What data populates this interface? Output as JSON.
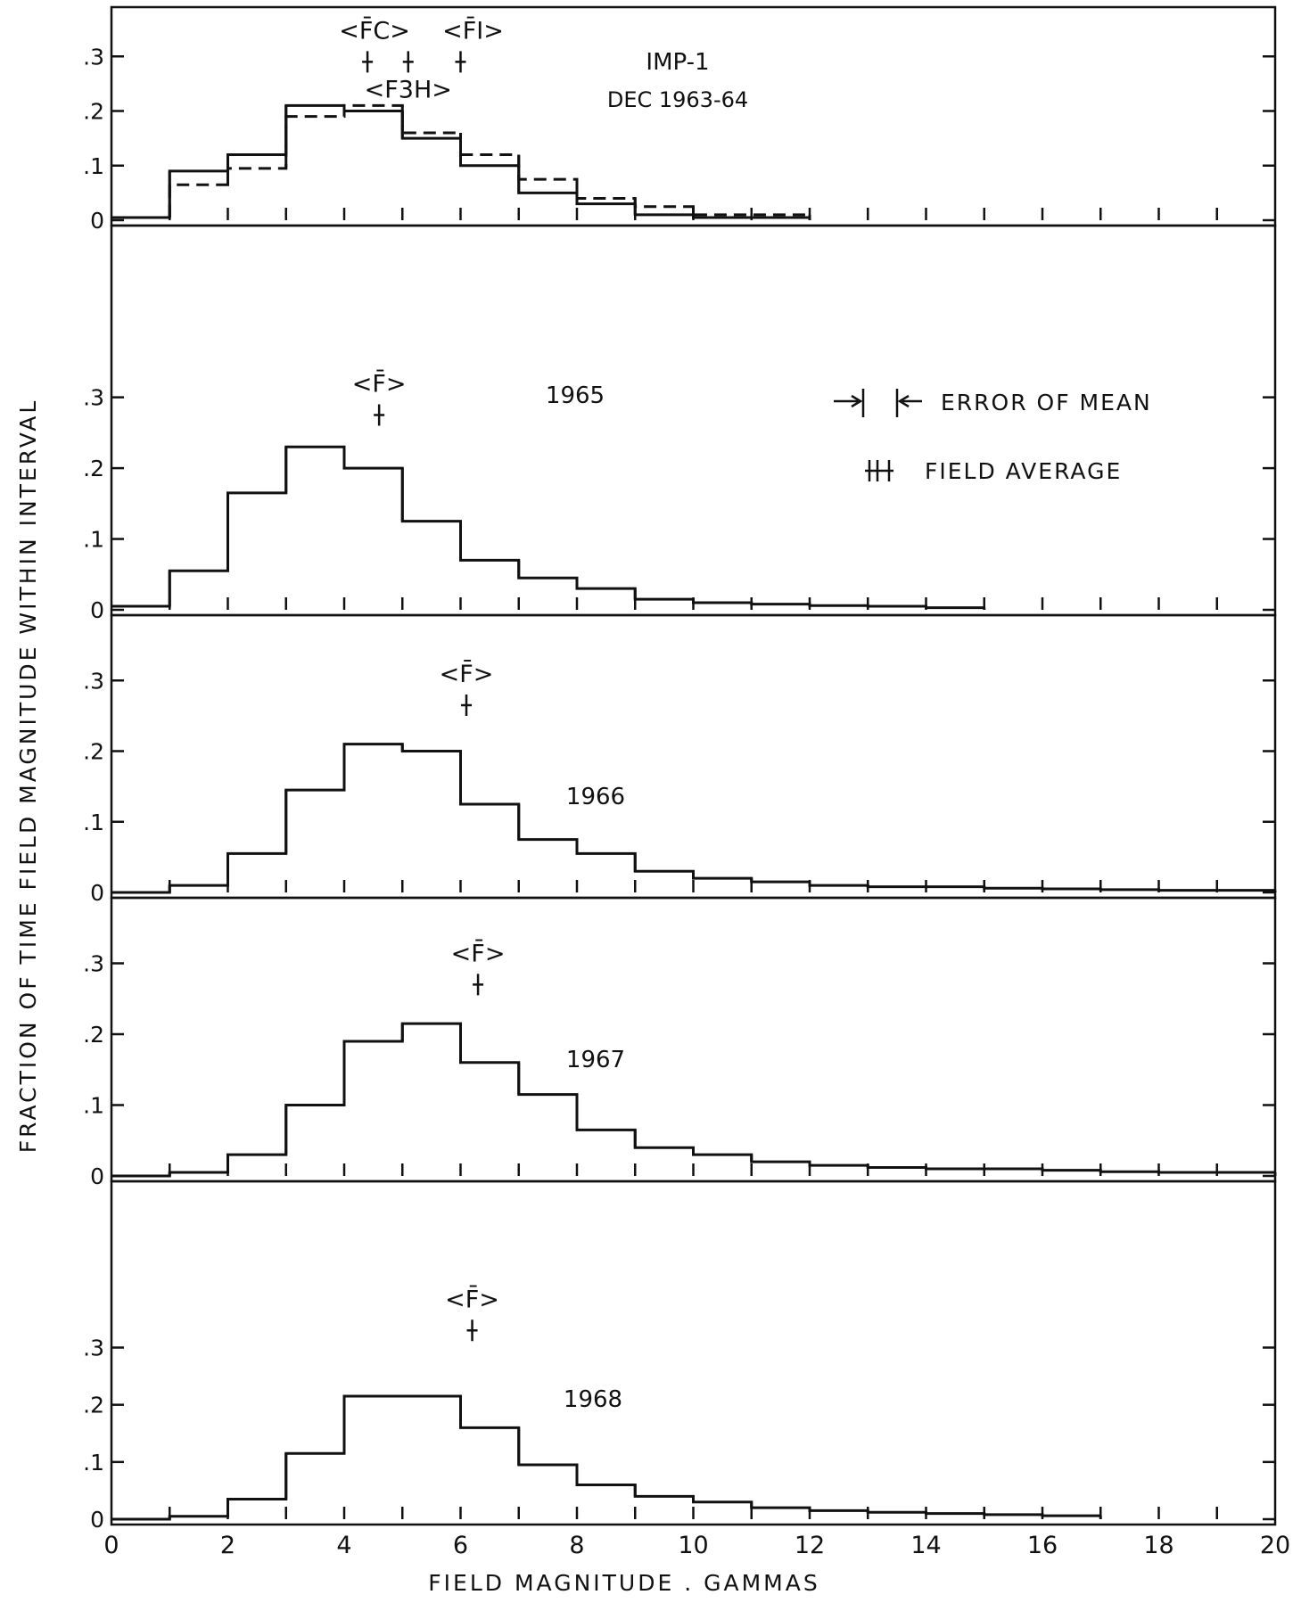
{
  "figure": {
    "ylabel": "FRACTION OF TIME FIELD MAGNITUDE WITHIN INTERVAL",
    "xlabel": "FIELD MAGNITUDE . GAMMAS",
    "legend": {
      "error_label": "ERROR OF MEAN",
      "average_label": "FIELD AVERAGE"
    }
  },
  "chart_data": [
    {
      "type": "histogram",
      "title": "IMP-1",
      "subtitle": "DEC 1963-64",
      "xlim": [
        0,
        20
      ],
      "ylim": [
        0,
        0.4
      ],
      "yticks": [
        0,
        0.1,
        0.2,
        0.3
      ],
      "ytick_labels": [
        "0",
        ".1",
        ".2",
        ".3"
      ],
      "bins": [
        0,
        1,
        2,
        3,
        4,
        5,
        6,
        7,
        8,
        9,
        10,
        11,
        12
      ],
      "series": [
        {
          "style": "solid",
          "values": [
            0.005,
            0.09,
            0.12,
            0.21,
            0.2,
            0.15,
            0.1,
            0.05,
            0.03,
            0.01,
            0.005,
            0.005
          ]
        },
        {
          "style": "dashed",
          "values": [
            0.005,
            0.065,
            0.095,
            0.19,
            0.21,
            0.16,
            0.12,
            0.075,
            0.04,
            0.025,
            0.01,
            0.01
          ]
        }
      ],
      "averages": [
        {
          "label": "<F̄C>",
          "x": 4.4,
          "y": 0.29
        },
        {
          "label": "<F3H>",
          "x": 5.1,
          "y": 0.29
        },
        {
          "label": "<F̄I>",
          "x": 6.0,
          "y": 0.29
        }
      ]
    },
    {
      "type": "histogram",
      "title": "1965",
      "xlim": [
        0,
        20
      ],
      "ylim": [
        0,
        0.55
      ],
      "yticks": [
        0,
        0.1,
        0.2,
        0.3
      ],
      "ytick_labels": [
        "0",
        ".1",
        ".2",
        ".3"
      ],
      "bins": [
        0,
        1,
        2,
        3,
        4,
        5,
        6,
        7,
        8,
        9,
        10,
        11,
        12,
        13,
        14,
        15
      ],
      "series": [
        {
          "style": "solid",
          "values": [
            0.005,
            0.055,
            0.165,
            0.23,
            0.2,
            0.125,
            0.07,
            0.045,
            0.03,
            0.015,
            0.01,
            0.008,
            0.006,
            0.005,
            0.003
          ]
        }
      ],
      "averages": [
        {
          "label": "<F̄>",
          "x": 4.6,
          "y": 0.275
        }
      ]
    },
    {
      "type": "histogram",
      "title": "1966",
      "xlim": [
        0,
        20
      ],
      "ylim": [
        0,
        0.4
      ],
      "yticks": [
        0,
        0.1,
        0.2,
        0.3
      ],
      "ytick_labels": [
        "0",
        ".1",
        ".2",
        ".3"
      ],
      "bins": [
        0,
        1,
        2,
        3,
        4,
        5,
        6,
        7,
        8,
        9,
        10,
        11,
        12,
        13,
        14,
        15,
        16,
        17,
        18,
        19,
        20
      ],
      "series": [
        {
          "style": "solid",
          "values": [
            0.0,
            0.01,
            0.055,
            0.145,
            0.21,
            0.2,
            0.125,
            0.075,
            0.055,
            0.03,
            0.02,
            0.015,
            0.01,
            0.008,
            0.008,
            0.006,
            0.005,
            0.004,
            0.003,
            0.003
          ]
        }
      ],
      "averages": [
        {
          "label": "<F̄>",
          "x": 6.1,
          "y": 0.265
        }
      ]
    },
    {
      "type": "histogram",
      "title": "1967",
      "xlim": [
        0,
        20
      ],
      "ylim": [
        0,
        0.4
      ],
      "yticks": [
        0,
        0.1,
        0.2,
        0.3
      ],
      "ytick_labels": [
        "0",
        ".1",
        ".2",
        ".3"
      ],
      "bins": [
        0,
        1,
        2,
        3,
        4,
        5,
        6,
        7,
        8,
        9,
        10,
        11,
        12,
        13,
        14,
        15,
        16,
        17,
        18,
        19,
        20
      ],
      "series": [
        {
          "style": "solid",
          "values": [
            0.0,
            0.005,
            0.03,
            0.1,
            0.19,
            0.215,
            0.16,
            0.115,
            0.065,
            0.04,
            0.03,
            0.02,
            0.015,
            0.012,
            0.01,
            0.01,
            0.008,
            0.006,
            0.005,
            0.005
          ]
        }
      ],
      "averages": [
        {
          "label": "<F̄>",
          "x": 6.3,
          "y": 0.27
        }
      ]
    },
    {
      "type": "histogram",
      "title": "1968",
      "xlim": [
        0,
        20
      ],
      "ylim": [
        0,
        0.6
      ],
      "yticks": [
        0,
        0.1,
        0.2,
        0.3
      ],
      "ytick_labels": [
        "0",
        ".1",
        ".2",
        ".3"
      ],
      "xticks": [
        0,
        2,
        4,
        6,
        8,
        10,
        12,
        14,
        16,
        18,
        20
      ],
      "xtick_labels": [
        "0",
        "2",
        "4",
        "6",
        "8",
        "10",
        "12",
        "14",
        "16",
        "18",
        "20"
      ],
      "bins": [
        0,
        1,
        2,
        3,
        4,
        5,
        6,
        7,
        8,
        9,
        10,
        11,
        12,
        13,
        14,
        15,
        16,
        17
      ],
      "series": [
        {
          "style": "solid",
          "values": [
            0.0,
            0.005,
            0.035,
            0.115,
            0.215,
            0.215,
            0.16,
            0.095,
            0.06,
            0.04,
            0.03,
            0.02,
            0.015,
            0.012,
            0.01,
            0.008,
            0.006
          ]
        }
      ],
      "averages": [
        {
          "label": "<F̄>",
          "x": 6.2,
          "y": 0.33
        }
      ]
    }
  ]
}
